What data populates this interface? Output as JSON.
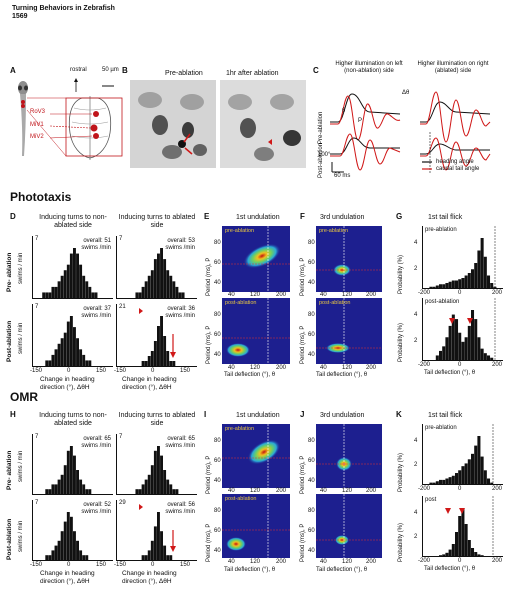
{
  "header": {
    "title": "Turning Behaviors in Zebrafish",
    "page": "1569"
  },
  "panel_letters": {
    "A": "A",
    "B": "B",
    "C": "C",
    "D": "D",
    "E": "E",
    "F": "F",
    "G": "G",
    "H": "H",
    "I": "I",
    "J": "J",
    "K": "K"
  },
  "panelA": {
    "rostral": "rostral",
    "scale": "50 µm",
    "labels": [
      "RoV3",
      "MiV1",
      "MiV2"
    ]
  },
  "panelB": {
    "left": "Pre-ablation",
    "right": "1hr after ablation"
  },
  "panelC": {
    "col1": "Higher illumination on left (non-ablation) side",
    "col2": "Higher illumination on right (ablated) side",
    "row1": "Pre-ablation",
    "row2": "Post-ablation",
    "scale_y": "100°",
    "scale_x": "60 ms",
    "legend_heading": "heading angle",
    "legend_tail": "caudal tail angle",
    "sym_dtheta": "Δθ",
    "sym_theta": "θ",
    "sym_P": "P"
  },
  "sections": {
    "phototaxis": "Phototaxis",
    "omr": "OMR"
  },
  "histo": {
    "col1": "Inducing turns to non-ablated side",
    "col2": "Inducing turns to ablated side",
    "row_pre": "Pre- ablation",
    "row_post": "Post-ablation",
    "yunit": "swims / min",
    "xlabel": "Change in heading direction (°), ΔθH",
    "ticks": [
      "-150",
      "0",
      "150"
    ],
    "phototaxis": {
      "pre1": "overall: 51 swims /min",
      "pre2": "overall: 53 swims /min",
      "post1": "overall: 37 swims /min",
      "post2": "overall: 36 swims /min",
      "ymax": "7",
      "post2_ymax": "21"
    },
    "omr": {
      "pre1": "overall: 65 swims /min",
      "pre2": "overall: 65 swims /min",
      "post1": "overall: 52 swims /min",
      "post2": "overall: 56 swims /min",
      "ymax": "7",
      "post2_ymax": "29"
    }
  },
  "heat": {
    "titleE": "1st undulation",
    "titleF": "3rd undulation",
    "ylabel": "Period (ms), P",
    "xlabel": "Tail deflection (°), θ",
    "pre": "pre-ablation",
    "post": "post-ablation",
    "yticks": [
      "80",
      "60",
      "40"
    ],
    "xticks": [
      "40",
      "120",
      "200"
    ]
  },
  "probG": {
    "title": "1st tail flick",
    "ylabel": "Probability (%)",
    "xlabel": "Tail deflection (°), θ",
    "pre": "pre-ablation",
    "post": "post-ablation",
    "post_short": "post",
    "yticks": [
      "4",
      "2"
    ],
    "xticks": [
      "-200",
      "0",
      "200"
    ]
  },
  "chart_data": [
    {
      "type": "bar",
      "panel": "D-pre-left",
      "x_range": [
        -200,
        200
      ],
      "values": [
        0,
        0,
        0,
        1,
        1,
        1,
        2,
        2,
        3,
        4,
        5,
        6,
        8,
        9,
        8,
        6,
        4,
        3,
        2,
        1,
        1,
        0,
        0,
        0,
        0,
        0
      ]
    },
    {
      "type": "bar",
      "panel": "D-pre-right",
      "x_range": [
        -200,
        200
      ],
      "values": [
        0,
        0,
        0,
        0,
        0,
        0,
        1,
        1,
        2,
        3,
        4,
        5,
        7,
        8,
        9,
        7,
        5,
        4,
        3,
        2,
        1,
        1,
        0,
        0,
        0,
        0
      ]
    },
    {
      "type": "bar",
      "panel": "D-post-left",
      "x_range": [
        -200,
        200
      ],
      "values": [
        0,
        0,
        0,
        0,
        1,
        1,
        2,
        3,
        4,
        5,
        6,
        8,
        9,
        7,
        5,
        3,
        2,
        1,
        1,
        0,
        0,
        0,
        0,
        0,
        0,
        0
      ]
    },
    {
      "type": "bar",
      "panel": "D-post-right",
      "x_range": [
        -200,
        200
      ],
      "values": [
        0,
        0,
        0,
        0,
        0,
        0,
        0,
        0,
        1,
        1,
        2,
        3,
        5,
        8,
        10,
        6,
        3,
        1,
        1,
        0,
        0,
        0,
        0,
        0,
        0,
        0
      ]
    },
    {
      "type": "bar",
      "panel": "H-pre-left",
      "x_range": [
        -200,
        200
      ],
      "values": [
        0,
        0,
        0,
        0,
        1,
        1,
        2,
        2,
        3,
        4,
        6,
        9,
        10,
        8,
        5,
        3,
        2,
        1,
        1,
        0,
        0,
        0,
        0,
        0,
        0,
        0
      ]
    },
    {
      "type": "bar",
      "panel": "H-pre-right",
      "x_range": [
        -200,
        200
      ],
      "values": [
        0,
        0,
        0,
        0,
        0,
        0,
        1,
        1,
        2,
        3,
        4,
        6,
        9,
        10,
        8,
        5,
        3,
        2,
        1,
        1,
        0,
        0,
        0,
        0,
        0,
        0
      ]
    },
    {
      "type": "bar",
      "panel": "H-post-left",
      "x_range": [
        -200,
        200
      ],
      "values": [
        0,
        0,
        0,
        0,
        1,
        1,
        2,
        3,
        4,
        6,
        8,
        10,
        9,
        6,
        4,
        2,
        1,
        1,
        0,
        0,
        0,
        0,
        0,
        0,
        0,
        0
      ]
    },
    {
      "type": "bar",
      "panel": "H-post-right",
      "x_range": [
        -200,
        200
      ],
      "values": [
        0,
        0,
        0,
        0,
        0,
        0,
        0,
        0,
        1,
        1,
        2,
        4,
        7,
        10,
        6,
        3,
        1,
        1,
        0,
        0,
        0,
        0,
        0,
        0,
        0,
        0
      ]
    },
    {
      "type": "bar",
      "panel": "G-pre",
      "x_range": [
        -200,
        200
      ],
      "values": [
        0,
        0,
        0.1,
        0.1,
        0.2,
        0.3,
        0.3,
        0.4,
        0.5,
        0.6,
        0.6,
        0.7,
        0.8,
        1,
        1.2,
        1.5,
        2,
        3,
        4,
        2.5,
        1,
        0.4,
        0.1,
        0,
        0
      ]
    },
    {
      "type": "bar",
      "panel": "G-post",
      "x_range": [
        -200,
        200
      ],
      "values": [
        0,
        0,
        0,
        0,
        0.2,
        0.4,
        0.6,
        1,
        1.5,
        2,
        1.8,
        1.2,
        0.8,
        1,
        1.5,
        2.2,
        1.8,
        1,
        0.5,
        0.3,
        0.2,
        0.1,
        0,
        0,
        0
      ]
    },
    {
      "type": "bar",
      "panel": "K-pre",
      "x_range": [
        -200,
        200
      ],
      "values": [
        0,
        0,
        0.1,
        0.1,
        0.2,
        0.3,
        0.3,
        0.4,
        0.5,
        0.6,
        0.8,
        1,
        1.3,
        1.5,
        1.8,
        2.2,
        2.8,
        3.5,
        2,
        1,
        0.4,
        0.1,
        0,
        0,
        0
      ]
    },
    {
      "type": "bar",
      "panel": "K-post",
      "x_range": [
        -200,
        200
      ],
      "values": [
        0,
        0,
        0,
        0,
        0,
        0.1,
        0.2,
        0.4,
        0.8,
        1.5,
        3,
        5,
        6,
        4,
        2,
        1,
        0.5,
        0.2,
        0.1,
        0,
        0,
        0,
        0,
        0,
        0
      ]
    }
  ]
}
